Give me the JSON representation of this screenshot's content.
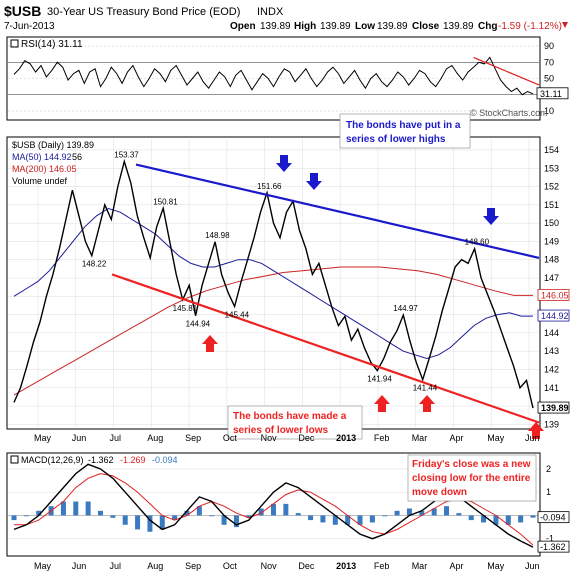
{
  "header": {
    "symbol": "$USB",
    "name": "30-Year US Treasury Bond Price (EOD)",
    "exchange": "INDX",
    "date": "7-Jun-2013",
    "open_label": "Open",
    "open": "139.89",
    "high_label": "High",
    "high": "139.89",
    "low_label": "Low",
    "low": "139.89",
    "close_label": "Close",
    "close": "139.89",
    "chg_label": "Chg",
    "chg": "-1.59 (-1.12%)",
    "watermark": "© StockCharts.com"
  },
  "rsi_panel": {
    "legend": "RSI(14) 31.11",
    "ticks": [
      "90",
      "70",
      "50",
      "30",
      "10"
    ],
    "tick_values": [
      90,
      70,
      50,
      30,
      10
    ],
    "last_value": "31.11",
    "last_value_num": 31.11,
    "values": [
      55,
      62,
      72,
      68,
      58,
      66,
      52,
      60,
      70,
      64,
      48,
      56,
      60,
      44,
      58,
      62,
      40,
      50,
      64,
      56,
      44,
      58,
      66,
      52,
      40,
      50,
      62,
      56,
      46,
      60,
      66,
      54,
      42,
      50,
      58,
      46,
      38,
      48,
      58,
      52,
      40,
      54,
      60,
      48,
      36,
      46,
      56,
      50,
      40,
      52,
      62,
      58,
      46,
      54,
      62,
      50,
      40,
      48,
      58,
      64,
      56,
      44,
      52,
      60,
      48,
      38,
      50,
      56,
      46,
      40,
      48,
      58,
      52,
      42,
      50,
      60,
      56,
      46,
      40,
      50,
      62,
      66,
      56,
      48,
      58,
      64,
      70,
      68,
      76,
      62,
      48,
      40,
      34,
      38,
      30,
      34,
      31.11
    ],
    "colors": {
      "line": "#000000",
      "overbought_fill": "#44aa44",
      "oversold_fill": "#4466cc",
      "trend": "#e02020"
    }
  },
  "price_panel": {
    "legend": [
      {
        "text": "$USB (Daily) 139.89",
        "color": "#000000"
      },
      {
        "text": "MA(50) 144.92",
        "color": "#1a1a9a"
      },
      {
        "text": "MA(200) 146.05",
        "color": "#cc2222"
      },
      {
        "text": "Volume undef",
        "color": "#000000"
      }
    ],
    "legend_overlap_value": "56",
    "y_ticks": [
      "154",
      "153",
      "152",
      "151",
      "150",
      "149",
      "148",
      "147",
      "146",
      "145",
      "144",
      "143",
      "142",
      "141",
      "140",
      "139"
    ],
    "y_values": [
      154,
      153,
      152,
      151,
      150,
      149,
      148,
      147,
      146,
      145,
      144,
      143,
      142,
      141,
      140,
      139
    ],
    "right_labels": [
      {
        "text": "146.05",
        "value": 146.05,
        "color": "#cc2222"
      },
      {
        "text": "144.92",
        "value": 144.92,
        "color": "#1a1a9a"
      },
      {
        "text": "139.89",
        "value": 139.89,
        "color": "#000000"
      }
    ],
    "annotations": [
      {
        "text": "153.37",
        "value": 153.37
      },
      {
        "text": "148.22",
        "value": 148.22
      },
      {
        "text": "150.81",
        "value": 150.81
      },
      {
        "text": "145.81",
        "value": 145.81
      },
      {
        "text": "144.94",
        "value": 144.94
      },
      {
        "text": "148.98",
        "value": 148.98
      },
      {
        "text": "145.44",
        "value": 145.44
      },
      {
        "text": "151.66",
        "value": 151.66
      },
      {
        "text": "144.97",
        "value": 144.97
      },
      {
        "text": "141.94",
        "value": 141.94
      },
      {
        "text": "141.44",
        "value": 141.44
      },
      {
        "text": "148.60",
        "value": 148.6
      }
    ],
    "callouts": [
      {
        "lines": [
          "The bonds have put in a",
          "series of lower highs"
        ],
        "color": "#1a1acc"
      },
      {
        "lines": [
          "The bonds have made a",
          "series of lower lows"
        ],
        "color": "#ee2222"
      },
      {
        "lines": [
          "Friday's close was a new",
          "closing low for the entire",
          "move down"
        ],
        "color": "#ee2222"
      }
    ],
    "trendlines": {
      "upper": {
        "color": "#1a1acc",
        "from": 153.2,
        "to": 148.1
      },
      "lower": {
        "color": "#ee2222",
        "from": 147.2,
        "to": 139.1
      }
    },
    "price": [
      140.2,
      141.0,
      142.2,
      143.5,
      144.6,
      146.0,
      147.2,
      148.6,
      150.2,
      151.8,
      150.4,
      149.0,
      148.22,
      149.6,
      151.0,
      150.2,
      152.0,
      153.37,
      152.2,
      150.4,
      149.2,
      148.1,
      149.8,
      150.81,
      149.0,
      147.2,
      145.81,
      146.6,
      144.94,
      146.6,
      147.8,
      148.98,
      147.2,
      146.2,
      145.44,
      146.8,
      148.0,
      149.2,
      150.6,
      151.66,
      150.0,
      149.2,
      150.6,
      151.2,
      149.6,
      148.6,
      147.2,
      147.8,
      146.6,
      145.4,
      144.4,
      144.9,
      143.6,
      144.2,
      143.2,
      142.4,
      141.94,
      142.6,
      143.5,
      144.1,
      144.97,
      143.6,
      142.4,
      141.44,
      142.6,
      143.8,
      145.2,
      146.4,
      147.6,
      148.0,
      147.8,
      148.6,
      147.0,
      146.1,
      145.2,
      144.2,
      143.2,
      142.2,
      141.0,
      141.4,
      139.89
    ],
    "ma50": [
      146.0,
      146.4,
      146.8,
      147.4,
      148.2,
      149.0,
      149.8,
      150.4,
      150.8,
      150.6,
      150.2,
      149.8,
      149.4,
      148.8,
      148.2,
      147.8,
      147.6,
      147.6,
      147.8,
      148.0,
      148.0,
      147.8,
      147.4,
      147.0,
      146.6,
      146.2,
      145.8,
      145.4,
      145.0,
      144.6,
      144.2,
      143.8,
      143.4,
      143.0,
      142.8,
      142.6,
      142.8,
      143.2,
      143.8,
      144.4,
      144.8,
      145.0,
      145.1,
      144.92,
      144.92
    ],
    "ma200": [
      140.6,
      141.2,
      141.8,
      142.4,
      143.0,
      143.6,
      144.2,
      144.8,
      145.4,
      145.9,
      146.3,
      146.6,
      146.9,
      147.1,
      147.3,
      147.4,
      147.5,
      147.6,
      147.6,
      147.6,
      147.5,
      147.4,
      147.2,
      146.9,
      146.6,
      146.3,
      146.05,
      146.05
    ],
    "colors": {
      "price_up": "#000000",
      "price_down": "#cc2222",
      "ma50": "#1a1a9a",
      "ma200": "#cc2222"
    }
  },
  "macd_panel": {
    "legend_label": "MACD(12,26,9)",
    "macd": "-1.362",
    "signal": "-1.269",
    "hist": "-0.094",
    "ticks": [
      "2",
      "1",
      "0",
      "-1"
    ],
    "tick_values": [
      2,
      1,
      0,
      -1
    ],
    "right_labels": [
      {
        "text": "-0.094",
        "value": -0.094
      },
      {
        "text": "-1.362",
        "value": -1.362
      }
    ],
    "macd_values": [
      -0.6,
      -0.4,
      0.0,
      0.6,
      1.2,
      1.8,
      2.2,
      2.0,
      1.6,
      1.0,
      0.4,
      -0.2,
      -0.6,
      -0.4,
      0.2,
      0.8,
      0.6,
      0.0,
      -0.4,
      -0.2,
      0.4,
      1.0,
      1.4,
      1.2,
      0.8,
      0.4,
      0.0,
      -0.4,
      -0.8,
      -1.0,
      -0.8,
      -0.4,
      0.0,
      0.2,
      0.6,
      1.0,
      0.8,
      0.4,
      0.0,
      -0.4,
      -0.8,
      -1.1,
      -1.362
    ],
    "signal_values": [
      -0.4,
      -0.4,
      -0.2,
      0.2,
      0.6,
      1.2,
      1.6,
      1.8,
      1.7,
      1.4,
      1.0,
      0.5,
      0.0,
      -0.2,
      0.0,
      0.4,
      0.6,
      0.4,
      0.1,
      -0.1,
      0.1,
      0.5,
      0.9,
      1.1,
      1.0,
      0.7,
      0.4,
      0.0,
      -0.4,
      -0.7,
      -0.8,
      -0.6,
      -0.3,
      0.0,
      0.3,
      0.6,
      0.7,
      0.6,
      0.3,
      0.0,
      -0.4,
      -0.8,
      -1.269
    ],
    "colors": {
      "macd": "#000000",
      "signal": "#e02020",
      "hist": "#3a7ac0"
    }
  },
  "x_axis": {
    "labels": [
      "May",
      "Jun",
      "Jul",
      "Aug",
      "Sep",
      "Oct",
      "Nov",
      "Dec",
      "2013",
      "Feb",
      "Mar",
      "Apr",
      "May",
      "Jun"
    ]
  },
  "colors": {
    "grid": "#d8d8d8",
    "panel_border": "#000000",
    "blue_arrow": "#1a1acc",
    "red_arrow": "#ee2222"
  }
}
